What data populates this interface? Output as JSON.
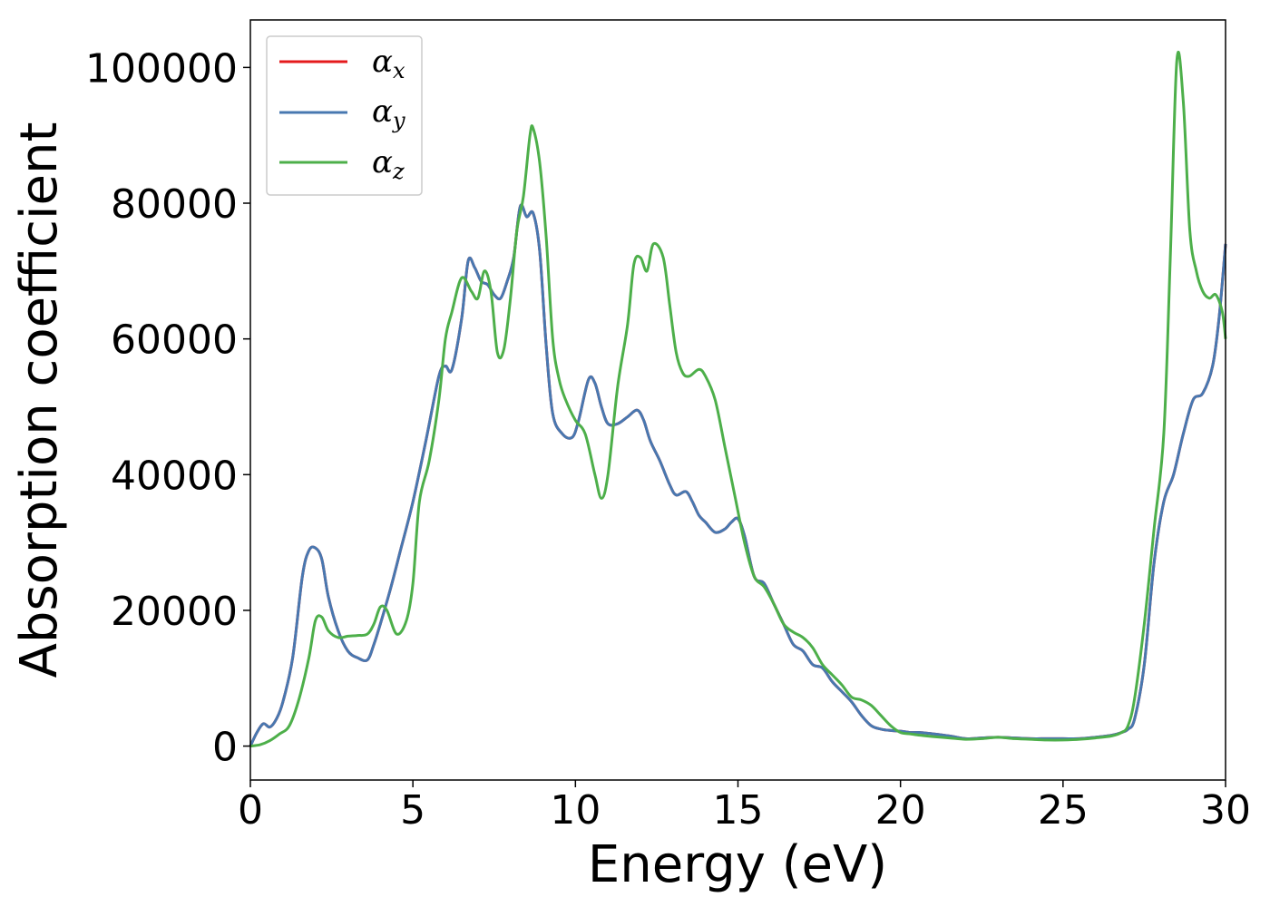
{
  "chart_data": {
    "type": "line",
    "title": "",
    "xlabel": "Energy (eV)",
    "ylabel": "Absorption coefficient",
    "xlim": [
      0,
      30
    ],
    "ylim": [
      -5000,
      107000
    ],
    "xticks": [
      0,
      5,
      10,
      15,
      20,
      25,
      30
    ],
    "yticks": [
      0,
      20000,
      40000,
      60000,
      80000,
      100000
    ],
    "grid": false,
    "legend_position": "upper-left",
    "series": [
      {
        "name": "α",
        "subscript": "x",
        "color": "#e41a1c",
        "x": [
          0,
          0.2,
          0.4,
          0.6,
          0.8,
          1.0,
          1.3,
          1.6,
          1.8,
          2.0,
          2.2,
          2.4,
          2.7,
          3.0,
          3.3,
          3.6,
          3.8,
          4.0,
          4.3,
          4.6,
          5.0,
          5.4,
          5.8,
          6.0,
          6.2,
          6.5,
          6.7,
          6.9,
          7.1,
          7.3,
          7.5,
          7.7,
          7.9,
          8.1,
          8.3,
          8.5,
          8.7,
          8.9,
          9.1,
          9.3,
          9.6,
          9.9,
          10.1,
          10.4,
          10.6,
          10.8,
          11.0,
          11.3,
          11.6,
          11.9,
          12.1,
          12.3,
          12.6,
          12.9,
          13.1,
          13.4,
          13.6,
          13.8,
          14.0,
          14.3,
          14.6,
          14.8,
          15.0,
          15.2,
          15.5,
          15.8,
          16.1,
          16.4,
          16.7,
          17.0,
          17.3,
          17.6,
          17.9,
          18.2,
          18.5,
          18.8,
          19.1,
          19.4,
          19.7,
          20.0,
          20.3,
          20.6,
          21.0,
          21.5,
          22.0,
          22.5,
          23.0,
          23.5,
          24.0,
          24.5,
          25.0,
          25.5,
          26.0,
          26.5,
          26.8,
          27.0,
          27.2,
          27.5,
          27.8,
          28.1,
          28.4,
          28.7,
          29.0,
          29.3,
          29.6,
          29.8,
          30.0
        ],
        "values": [
          0,
          2000,
          3300,
          2800,
          4000,
          6500,
          13000,
          25000,
          28800,
          29200,
          27500,
          22000,
          17000,
          14000,
          13000,
          12700,
          15000,
          18000,
          23000,
          28500,
          36000,
          45000,
          54500,
          56000,
          55500,
          63000,
          71500,
          70500,
          68500,
          68000,
          66500,
          66000,
          68500,
          72000,
          79500,
          78000,
          78500,
          73000,
          59000,
          49000,
          46000,
          45500,
          48000,
          54000,
          53500,
          50000,
          47500,
          47500,
          48500,
          49500,
          48000,
          45000,
          42000,
          38500,
          37000,
          37500,
          36000,
          34000,
          33000,
          31500,
          32000,
          33000,
          33500,
          31000,
          25000,
          24000,
          21000,
          18000,
          15000,
          14000,
          12000,
          11500,
          9500,
          8000,
          6500,
          4500,
          3000,
          2500,
          2300,
          2200,
          2000,
          2000,
          1800,
          1500,
          1100,
          1200,
          1300,
          1200,
          1100,
          1100,
          1100,
          1100,
          1300,
          1600,
          2000,
          2500,
          4000,
          12000,
          27000,
          36000,
          40000,
          46000,
          51000,
          52000,
          56000,
          63000,
          74000
        ]
      },
      {
        "name": "α",
        "subscript": "y",
        "color": "#4878b0",
        "x": [
          0,
          0.2,
          0.4,
          0.6,
          0.8,
          1.0,
          1.3,
          1.6,
          1.8,
          2.0,
          2.2,
          2.4,
          2.7,
          3.0,
          3.3,
          3.6,
          3.8,
          4.0,
          4.3,
          4.6,
          5.0,
          5.4,
          5.8,
          6.0,
          6.2,
          6.5,
          6.7,
          6.9,
          7.1,
          7.3,
          7.5,
          7.7,
          7.9,
          8.1,
          8.3,
          8.5,
          8.7,
          8.9,
          9.1,
          9.3,
          9.6,
          9.9,
          10.1,
          10.4,
          10.6,
          10.8,
          11.0,
          11.3,
          11.6,
          11.9,
          12.1,
          12.3,
          12.6,
          12.9,
          13.1,
          13.4,
          13.6,
          13.8,
          14.0,
          14.3,
          14.6,
          14.8,
          15.0,
          15.2,
          15.5,
          15.8,
          16.1,
          16.4,
          16.7,
          17.0,
          17.3,
          17.6,
          17.9,
          18.2,
          18.5,
          18.8,
          19.1,
          19.4,
          19.7,
          20.0,
          20.3,
          20.6,
          21.0,
          21.5,
          22.0,
          22.5,
          23.0,
          23.5,
          24.0,
          24.5,
          25.0,
          25.5,
          26.0,
          26.5,
          26.8,
          27.0,
          27.2,
          27.5,
          27.8,
          28.1,
          28.4,
          28.7,
          29.0,
          29.3,
          29.6,
          29.8,
          30.0
        ],
        "values": [
          0,
          2000,
          3300,
          2800,
          4000,
          6500,
          13000,
          25000,
          28800,
          29200,
          27500,
          22000,
          17000,
          14000,
          13000,
          12700,
          15000,
          18000,
          23000,
          28500,
          36000,
          45000,
          54500,
          56000,
          55500,
          63000,
          71500,
          70500,
          68500,
          68000,
          66500,
          66000,
          68500,
          72000,
          79500,
          78000,
          78500,
          73000,
          59000,
          49000,
          46000,
          45500,
          48000,
          54000,
          53500,
          50000,
          47500,
          47500,
          48500,
          49500,
          48000,
          45000,
          42000,
          38500,
          37000,
          37500,
          36000,
          34000,
          33000,
          31500,
          32000,
          33000,
          33500,
          31000,
          25000,
          24000,
          21000,
          18000,
          15000,
          14000,
          12000,
          11500,
          9500,
          8000,
          6500,
          4500,
          3000,
          2500,
          2300,
          2200,
          2000,
          2000,
          1800,
          1500,
          1100,
          1200,
          1300,
          1200,
          1100,
          1100,
          1100,
          1100,
          1300,
          1600,
          2000,
          2500,
          4000,
          12000,
          27000,
          36000,
          40000,
          46000,
          51000,
          52000,
          56000,
          63000,
          74000
        ]
      },
      {
        "name": "α",
        "subscript": "z",
        "color": "#4daf4a",
        "x": [
          0,
          0.3,
          0.6,
          0.9,
          1.2,
          1.5,
          1.8,
          2.0,
          2.2,
          2.4,
          2.7,
          3.0,
          3.3,
          3.6,
          3.8,
          4.0,
          4.2,
          4.5,
          4.8,
          5.0,
          5.2,
          5.5,
          5.8,
          6.0,
          6.2,
          6.5,
          6.8,
          7.0,
          7.2,
          7.4,
          7.6,
          7.8,
          8.0,
          8.2,
          8.4,
          8.6,
          8.7,
          8.9,
          9.1,
          9.3,
          9.5,
          9.7,
          10.0,
          10.3,
          10.6,
          10.8,
          11.0,
          11.3,
          11.6,
          11.8,
          12.0,
          12.2,
          12.4,
          12.7,
          12.9,
          13.1,
          13.3,
          13.5,
          13.8,
          14.0,
          14.3,
          14.6,
          14.9,
          15.2,
          15.5,
          15.8,
          16.1,
          16.4,
          16.7,
          17.0,
          17.3,
          17.6,
          17.9,
          18.2,
          18.5,
          18.8,
          19.1,
          19.4,
          19.7,
          20.0,
          20.3,
          20.6,
          21.0,
          21.5,
          22.0,
          22.5,
          23.0,
          23.5,
          24.0,
          24.5,
          25.0,
          25.5,
          26.0,
          26.5,
          26.8,
          27.0,
          27.2,
          27.5,
          27.8,
          28.1,
          28.3,
          28.5,
          28.7,
          28.9,
          29.1,
          29.3,
          29.5,
          29.7,
          29.9,
          30.0
        ],
        "values": [
          0,
          200,
          800,
          1800,
          3000,
          7000,
          13000,
          18500,
          19000,
          17000,
          16000,
          16200,
          16300,
          16500,
          18000,
          20500,
          20000,
          16500,
          18500,
          24000,
          36000,
          42000,
          51000,
          60000,
          64000,
          69000,
          67000,
          66000,
          70000,
          67000,
          58000,
          58500,
          66000,
          76000,
          81000,
          90000,
          91000,
          86000,
          75000,
          60000,
          54000,
          51000,
          48000,
          46000,
          40000,
          36500,
          40000,
          53000,
          62000,
          71000,
          72000,
          70000,
          74000,
          72000,
          65000,
          58000,
          55000,
          54500,
          55500,
          54500,
          51000,
          44000,
          37000,
          30000,
          25000,
          23500,
          21000,
          18000,
          16800,
          16000,
          14500,
          12000,
          10500,
          9000,
          7200,
          6800,
          6000,
          4500,
          3000,
          2000,
          1800,
          1600,
          1400,
          1200,
          1000,
          1100,
          1300,
          1100,
          1000,
          900,
          900,
          1000,
          1200,
          1500,
          2000,
          3000,
          7000,
          18000,
          32000,
          46000,
          72000,
          101000,
          95000,
          76000,
          70000,
          67000,
          66000,
          66500,
          64000,
          60000
        ]
      }
    ]
  }
}
